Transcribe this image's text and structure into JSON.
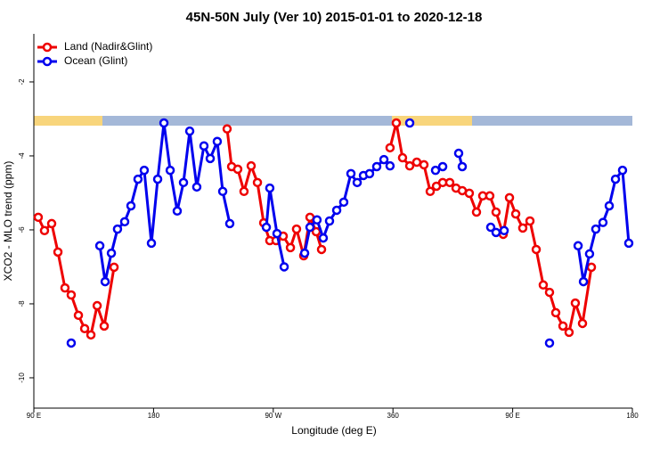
{
  "chart_data": {
    "type": "line",
    "title": "45N-50N July (Ver 10)   2015-01-01 to 2020-12-18",
    "x_label": "Longitude (deg E)",
    "y_label": "XCO2 - MLO trend (ppm)",
    "xlim": [
      90,
      540
    ],
    "ylim": [
      -10.82,
      -0.7
    ],
    "xticks": [
      {
        "value": 90,
        "label": "90 E"
      },
      180,
      {
        "value": 270,
        "label": "90 W"
      },
      360,
      {
        "value": 450,
        "label": "90 E"
      },
      {
        "value": 540,
        "label": "180"
      }
    ],
    "yticks": [
      -2,
      -4,
      -6,
      -8,
      -10
    ],
    "legend": "top-left",
    "series": [
      {
        "name": "Land (Nadir&Glint)",
        "color": "#ee0000",
        "x": [
          93.3,
          98.0,
          103.4,
          108.1,
          113.4,
          118.1,
          123.5,
          128.2,
          132.9,
          137.6,
          142.9,
          150.3,
          null,
          235.3,
          238.7,
          243.3,
          248.0,
          253.4,
          258.1,
          262.8,
          267.4,
          272.1,
          277.5,
          282.9,
          287.5,
          292.9,
          297.6,
          302.3,
          306.3,
          null,
          357.8,
          362.5,
          367.2,
          372.6,
          377.9,
          383.3,
          388.0,
          392.7,
          397.4,
          402.7,
          407.4,
          412.1,
          417.4,
          422.8,
          427.5,
          432.8,
          437.5,
          442.9,
          447.6,
          452.3,
          457.6,
          463.0,
          467.7,
          473.0,
          477.7,
          482.4,
          487.8,
          492.4,
          497.1,
          502.5,
          509.2
        ],
        "values": [
          -5.66,
          -6.02,
          -5.83,
          -6.6,
          -7.57,
          -7.76,
          -8.31,
          -8.67,
          -8.84,
          -8.05,
          -8.6,
          -7.01,
          null,
          -3.27,
          -4.29,
          -4.36,
          -4.96,
          -4.27,
          -4.72,
          -5.81,
          -6.29,
          -6.29,
          -6.17,
          -6.48,
          -5.98,
          -6.7,
          -5.66,
          -6.05,
          -6.53,
          null,
          -3.78,
          -3.11,
          -4.05,
          -4.27,
          -4.17,
          -4.24,
          -4.96,
          -4.82,
          -4.72,
          -4.72,
          -4.87,
          -4.94,
          -5.01,
          -5.52,
          -5.08,
          -5.08,
          -5.52,
          -6.12,
          -5.13,
          -5.57,
          -5.95,
          -5.76,
          -6.53,
          -7.49,
          -7.69,
          -8.24,
          -8.6,
          -8.77,
          -7.98,
          -8.53,
          -7.01
        ]
      },
      {
        "name": "Ocean (Glint)",
        "color": "#0000ee",
        "x": [
          118.1,
          null,
          139.6,
          143.6,
          148.3,
          152.9,
          158.3,
          163.0,
          168.3,
          173.0,
          178.4,
          183.1,
          187.8,
          192.5,
          197.8,
          202.5,
          207.2,
          212.5,
          217.9,
          222.6,
          227.9,
          232.0,
          237.3,
          null,
          264.8,
          267.4,
          272.8,
          278.2,
          null,
          293.6,
          297.6,
          302.9,
          307.6,
          312.3,
          317.7,
          323.0,
          328.4,
          333.1,
          337.8,
          342.4,
          347.8,
          353.2,
          357.8,
          null,
          372.6,
          null,
          392.0,
          397.4,
          null,
          409.4,
          412.1,
          null,
          433.5,
          437.5,
          443.6,
          null,
          477.7,
          null,
          499.2,
          503.2,
          507.8,
          512.5,
          517.9,
          522.6,
          527.3,
          532.6,
          537.3
        ],
        "values": [
          -9.06,
          null,
          -6.43,
          -7.4,
          -6.63,
          -5.98,
          -5.78,
          -5.35,
          -4.63,
          -4.39,
          -6.36,
          -4.63,
          -3.11,
          -4.39,
          -5.49,
          -4.72,
          -3.33,
          -4.84,
          -3.73,
          -4.07,
          -3.61,
          -4.96,
          -5.83,
          null,
          -5.93,
          -4.87,
          -6.1,
          -7.0,
          null,
          -6.63,
          -5.93,
          -5.73,
          -6.22,
          -5.76,
          -5.47,
          -5.25,
          -4.48,
          -4.72,
          -4.53,
          -4.48,
          -4.29,
          -4.1,
          -4.27,
          null,
          -3.11,
          null,
          -4.39,
          -4.29,
          null,
          -3.93,
          -4.29,
          null,
          -5.93,
          -6.07,
          -6.02,
          null,
          -9.06,
          null,
          -6.43,
          -7.4,
          -6.65,
          -5.98,
          -5.8,
          -5.35,
          -4.63,
          -4.39,
          -6.36
        ]
      }
    ]
  }
}
